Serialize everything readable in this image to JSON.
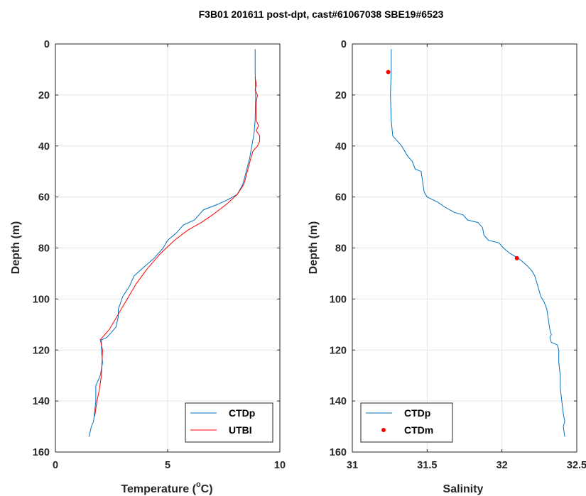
{
  "figure": {
    "title": "F3B01 201611 post-dpt, cast#61067038 SBE19#6523"
  },
  "colors": {
    "ctd": "#0072BD",
    "utbi": "#FF0000",
    "grid": "#e6e6e6",
    "axis": "#262626"
  },
  "chart_data": [
    {
      "type": "line",
      "xlabel_main": "Temperature (",
      "xlabel_sup": "o",
      "xlabel_tail": "C)",
      "ylabel": "Depth (m)",
      "xlim": [
        0,
        10
      ],
      "ylim": [
        0,
        160
      ],
      "y_reversed": true,
      "xticks": [
        0,
        5,
        10
      ],
      "yticks": [
        0,
        20,
        40,
        60,
        80,
        100,
        120,
        140,
        160
      ],
      "grid": true,
      "legend_location": "bottom-right",
      "series": [
        {
          "name": "CTDp",
          "color": "#0072BD",
          "points": [
            [
              8.9,
              2
            ],
            [
              8.9,
              10
            ],
            [
              8.92,
              20
            ],
            [
              8.9,
              30
            ],
            [
              8.85,
              35
            ],
            [
              8.75,
              40
            ],
            [
              8.65,
              45
            ],
            [
              8.5,
              50
            ],
            [
              8.35,
              55
            ],
            [
              8.1,
              59
            ],
            [
              7.7,
              61
            ],
            [
              7.2,
              63
            ],
            [
              6.6,
              65
            ],
            [
              6.4,
              67
            ],
            [
              6.2,
              69
            ],
            [
              5.7,
              71
            ],
            [
              5.4,
              74
            ],
            [
              5.0,
              77
            ],
            [
              4.8,
              80
            ],
            [
              4.4,
              84
            ],
            [
              4.0,
              87
            ],
            [
              3.5,
              91
            ],
            [
              3.3,
              95
            ],
            [
              3.0,
              99
            ],
            [
              2.8,
              104
            ],
            [
              2.8,
              107
            ],
            [
              2.7,
              111
            ],
            [
              2.3,
              115
            ],
            [
              2.05,
              116
            ],
            [
              2.05,
              120
            ],
            [
              2.1,
              125
            ],
            [
              2.0,
              130
            ],
            [
              1.8,
              134
            ],
            [
              1.8,
              140
            ],
            [
              1.75,
              144
            ],
            [
              1.7,
              148
            ],
            [
              1.6,
              150
            ],
            [
              1.5,
              154
            ]
          ]
        },
        {
          "name": "UTBI",
          "color": "#FF0000",
          "points": [
            [
              8.9,
              13
            ],
            [
              8.95,
              16
            ],
            [
              8.9,
              18
            ],
            [
              9.0,
              20
            ],
            [
              8.95,
              23
            ],
            [
              8.95,
              26
            ],
            [
              8.95,
              30
            ],
            [
              9.05,
              32
            ],
            [
              8.95,
              34
            ],
            [
              9.1,
              36
            ],
            [
              9.1,
              38
            ],
            [
              9.0,
              40
            ],
            [
              8.8,
              42
            ],
            [
              8.7,
              45
            ],
            [
              8.55,
              50
            ],
            [
              8.4,
              55
            ],
            [
              8.1,
              59
            ],
            [
              7.6,
              63
            ],
            [
              7.0,
              67
            ],
            [
              6.5,
              70
            ],
            [
              5.9,
              73
            ],
            [
              5.3,
              77
            ],
            [
              4.7,
              82
            ],
            [
              4.1,
              88
            ],
            [
              3.6,
              94
            ],
            [
              3.2,
              100
            ],
            [
              2.8,
              106
            ],
            [
              2.4,
              112
            ],
            [
              2.0,
              116
            ],
            [
              2.1,
              120
            ],
            [
              2.05,
              130
            ],
            [
              1.95,
              136
            ],
            [
              1.85,
              140
            ],
            [
              1.8,
              143
            ],
            [
              1.75,
              146
            ]
          ]
        }
      ]
    },
    {
      "type": "line",
      "xlabel": "Salinity",
      "ylabel": "Depth (m)",
      "xlim": [
        31,
        32.5
      ],
      "ylim": [
        0,
        160
      ],
      "y_reversed": true,
      "xticks": [
        31,
        31.5,
        32,
        32.5
      ],
      "yticks": [
        0,
        20,
        40,
        60,
        80,
        100,
        120,
        140,
        160
      ],
      "grid": true,
      "legend_location": "bottom-left",
      "series": [
        {
          "name": "CTDp",
          "kind": "line",
          "color": "#0072BD",
          "points": [
            [
              31.26,
              2
            ],
            [
              31.26,
              10
            ],
            [
              31.255,
              20
            ],
            [
              31.26,
              30
            ],
            [
              31.27,
              36
            ],
            [
              31.3,
              38
            ],
            [
              31.33,
              40
            ],
            [
              31.35,
              42
            ],
            [
              31.37,
              44
            ],
            [
              31.4,
              46
            ],
            [
              31.42,
              49
            ],
            [
              31.46,
              50
            ],
            [
              31.47,
              54
            ],
            [
              31.48,
              58
            ],
            [
              31.5,
              60
            ],
            [
              31.57,
              62
            ],
            [
              31.62,
              64
            ],
            [
              31.68,
              66
            ],
            [
              31.74,
              67
            ],
            [
              31.77,
              69
            ],
            [
              31.84,
              70
            ],
            [
              31.87,
              72
            ],
            [
              31.88,
              75
            ],
            [
              31.91,
              77
            ],
            [
              31.98,
              78
            ],
            [
              32.01,
              80
            ],
            [
              32.05,
              82
            ],
            [
              32.11,
              84
            ],
            [
              32.15,
              86
            ],
            [
              32.17,
              87
            ],
            [
              32.2,
              89
            ],
            [
              32.22,
              91
            ],
            [
              32.24,
              95
            ],
            [
              32.26,
              99
            ],
            [
              32.28,
              101
            ],
            [
              32.3,
              104
            ],
            [
              32.31,
              108
            ],
            [
              32.32,
              112
            ],
            [
              32.33,
              114
            ],
            [
              32.32,
              115
            ],
            [
              32.33,
              117
            ],
            [
              32.37,
              118
            ],
            [
              32.38,
              120
            ],
            [
              32.38,
              125
            ],
            [
              32.39,
              130
            ],
            [
              32.39,
              135
            ],
            [
              32.4,
              140
            ],
            [
              32.41,
              145
            ],
            [
              32.42,
              148
            ],
            [
              32.41,
              150
            ],
            [
              32.42,
              154
            ]
          ]
        },
        {
          "name": "CTDm",
          "kind": "markers",
          "color": "#FF0000",
          "points": [
            [
              31.24,
              11
            ],
            [
              32.1,
              84
            ]
          ]
        }
      ]
    }
  ]
}
